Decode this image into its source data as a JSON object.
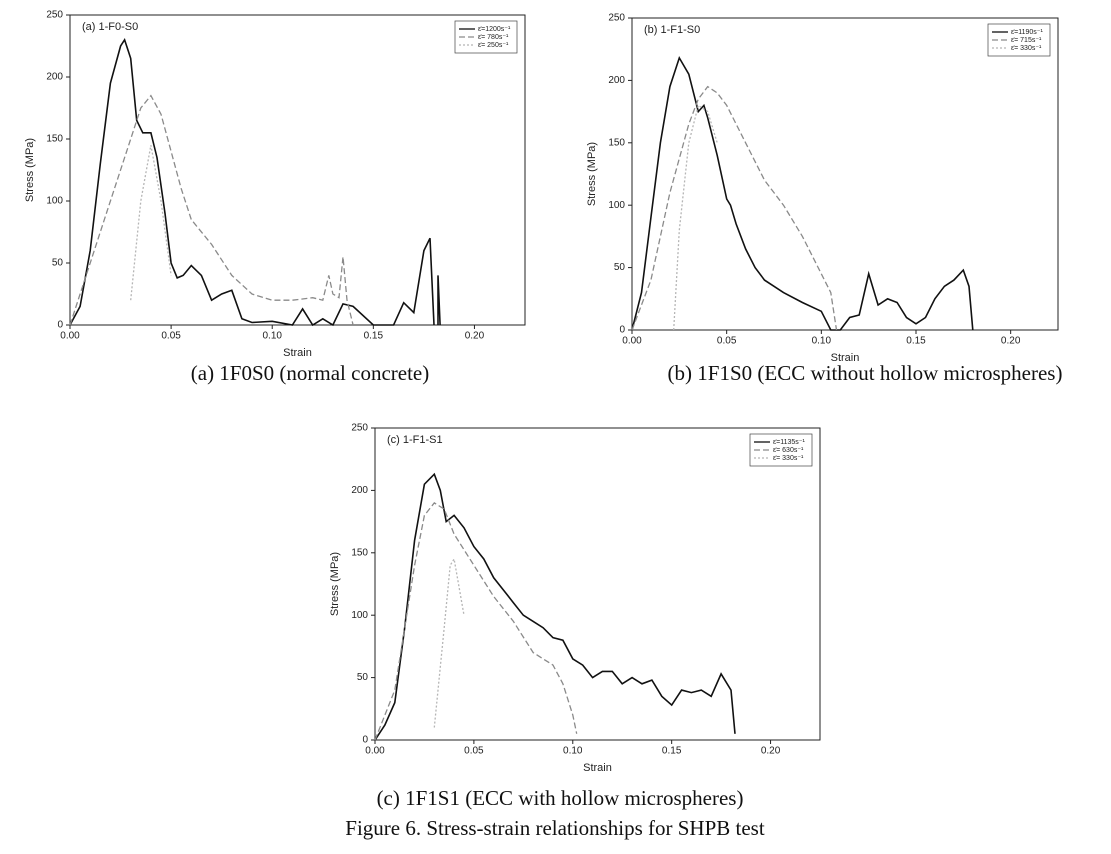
{
  "chart_data": [
    {
      "type": "line",
      "annotation": "(a) 1-F0-S0",
      "caption": "(a) 1F0S0 (normal concrete)",
      "x_label": "Strain",
      "y_label": "Stress (MPa)",
      "xlim": [
        0,
        0.225
      ],
      "ylim": [
        0,
        250
      ],
      "xticks": [
        {
          "value": 0,
          "label": "0.00"
        },
        {
          "value": 0.05,
          "label": "0.05"
        },
        {
          "value": 0.1,
          "label": "0.10"
        },
        {
          "value": 0.15,
          "label": "0.15"
        },
        {
          "value": 0.2,
          "label": "0.20"
        }
      ],
      "yticks": [
        0,
        50,
        100,
        150,
        200,
        250
      ],
      "legend": "upper right",
      "series": [
        {
          "name": "ε̇=1200s⁻¹",
          "color": "#111111",
          "dash": "solid",
          "x": [
            0,
            0.005,
            0.01,
            0.015,
            0.02,
            0.025,
            0.027,
            0.03,
            0.033,
            0.036,
            0.04,
            0.043,
            0.047,
            0.05,
            0.053,
            0.056,
            0.06,
            0.065,
            0.07,
            0.075,
            0.08,
            0.085,
            0.09,
            0.1,
            0.11,
            0.115,
            0.12,
            0.125,
            0.13,
            0.135,
            0.14,
            0.15,
            0.16,
            0.165,
            0.17,
            0.175,
            0.178,
            0.18,
            null,
            0.182,
            0.182,
            0.183
          ],
          "values": [
            0,
            15,
            60,
            130,
            195,
            225,
            230,
            215,
            165,
            155,
            155,
            135,
            90,
            50,
            38,
            40,
            48,
            40,
            20,
            25,
            28,
            5,
            2,
            3,
            0,
            13,
            0,
            5,
            0,
            17,
            15,
            0,
            0,
            18,
            10,
            60,
            70,
            0,
            null,
            0,
            40,
            0
          ]
        },
        {
          "name": "ε̇= 780s⁻¹",
          "color": "#8a8a8a",
          "dash": "dashed",
          "x": [
            0,
            0.01,
            0.02,
            0.03,
            0.035,
            0.04,
            0.045,
            0.05,
            0.055,
            0.06,
            0.07,
            0.08,
            0.09,
            0.1,
            0.11,
            0.12,
            0.125,
            0.128,
            0.13,
            0.133,
            0.135,
            0.137,
            0.14
          ],
          "values": [
            0,
            50,
            100,
            150,
            175,
            185,
            170,
            140,
            110,
            85,
            65,
            40,
            25,
            20,
            20,
            22,
            20,
            40,
            25,
            22,
            55,
            20,
            0
          ]
        },
        {
          "name": "ε̇= 250s⁻¹",
          "color": "#b5b5b5",
          "dash": "dotted",
          "x": [
            0.03,
            0.035,
            0.04,
            0.045,
            0.05
          ],
          "values": [
            20,
            100,
            145,
            100,
            40
          ]
        }
      ]
    },
    {
      "type": "line",
      "annotation": "(b) 1-F1-S0",
      "caption": "(b) 1F1S0 (ECC without hollow microspheres)",
      "x_label": "Strain",
      "y_label": "Stress (MPa)",
      "xlim": [
        0,
        0.225
      ],
      "ylim": [
        0,
        250
      ],
      "xticks": [
        {
          "value": 0,
          "label": "0.00"
        },
        {
          "value": 0.05,
          "label": "0.05"
        },
        {
          "value": 0.1,
          "label": "0.10"
        },
        {
          "value": 0.15,
          "label": "0.15"
        },
        {
          "value": 0.2,
          "label": "0.20"
        }
      ],
      "yticks": [
        0,
        50,
        100,
        150,
        200,
        250
      ],
      "legend": "upper right",
      "series": [
        {
          "name": "ε̇=1190s⁻¹",
          "color": "#111111",
          "dash": "solid",
          "x": [
            0,
            0.005,
            0.01,
            0.015,
            0.02,
            0.025,
            0.03,
            0.035,
            0.038,
            0.04,
            0.045,
            0.05,
            0.052,
            0.055,
            0.06,
            0.065,
            0.07,
            0.075,
            0.08,
            0.09,
            0.1,
            0.105,
            0.11,
            0.115,
            0.12,
            0.125,
            0.13,
            0.135,
            0.14,
            0.145,
            0.15,
            0.155,
            0.16,
            0.165,
            0.17,
            0.175,
            0.178,
            0.18
          ],
          "values": [
            0,
            30,
            90,
            150,
            195,
            218,
            205,
            175,
            180,
            170,
            140,
            105,
            100,
            85,
            65,
            50,
            40,
            35,
            30,
            22,
            15,
            0,
            0,
            10,
            12,
            45,
            20,
            25,
            22,
            10,
            5,
            10,
            25,
            35,
            40,
            48,
            35,
            0
          ]
        },
        {
          "name": "ε̇= 715s⁻¹",
          "color": "#8a8a8a",
          "dash": "dashed",
          "x": [
            0,
            0.01,
            0.02,
            0.03,
            0.035,
            0.04,
            0.045,
            0.05,
            0.06,
            0.07,
            0.08,
            0.09,
            0.1,
            0.105,
            0.108
          ],
          "values": [
            0,
            40,
            110,
            165,
            185,
            195,
            190,
            180,
            150,
            120,
            100,
            75,
            45,
            30,
            0
          ]
        },
        {
          "name": "ε̇= 330s⁻¹",
          "color": "#b5b5b5",
          "dash": "dotted",
          "x": [
            0.022,
            0.025,
            0.03,
            0.035,
            0.04,
            0.045
          ],
          "values": [
            0,
            80,
            150,
            180,
            175,
            150
          ]
        }
      ]
    },
    {
      "type": "line",
      "annotation": "(c) 1-F1-S1",
      "caption": "(c) 1F1S1 (ECC with hollow microspheres)",
      "x_label": "Strain",
      "y_label": "Stress (MPa)",
      "xlim": [
        0,
        0.225
      ],
      "ylim": [
        0,
        250
      ],
      "xticks": [
        {
          "value": 0,
          "label": "0.00"
        },
        {
          "value": 0.05,
          "label": "0.05"
        },
        {
          "value": 0.1,
          "label": "0.10"
        },
        {
          "value": 0.15,
          "label": "0.15"
        },
        {
          "value": 0.2,
          "label": "0.20"
        }
      ],
      "yticks": [
        0,
        50,
        100,
        150,
        200,
        250
      ],
      "legend": "upper right",
      "series": [
        {
          "name": "ε̇=1135s⁻¹",
          "color": "#111111",
          "dash": "solid",
          "x": [
            0,
            0.005,
            0.01,
            0.015,
            0.02,
            0.025,
            0.03,
            0.033,
            0.036,
            0.04,
            0.045,
            0.05,
            0.055,
            0.06,
            0.065,
            0.07,
            0.075,
            0.08,
            0.085,
            0.09,
            0.095,
            0.1,
            0.105,
            0.11,
            0.115,
            0.12,
            0.125,
            0.13,
            0.135,
            0.14,
            0.145,
            0.15,
            0.155,
            0.16,
            0.165,
            0.17,
            0.175,
            0.18,
            0.182
          ],
          "values": [
            0,
            12,
            30,
            90,
            160,
            205,
            213,
            200,
            175,
            180,
            170,
            155,
            145,
            130,
            120,
            110,
            100,
            95,
            90,
            82,
            80,
            65,
            60,
            50,
            55,
            55,
            45,
            50,
            45,
            48,
            35,
            28,
            40,
            38,
            40,
            35,
            53,
            40,
            5
          ]
        },
        {
          "name": "ε̇= 630s⁻¹",
          "color": "#8a8a8a",
          "dash": "dashed",
          "x": [
            0,
            0.01,
            0.02,
            0.025,
            0.03,
            0.035,
            0.04,
            0.05,
            0.06,
            0.07,
            0.08,
            0.09,
            0.095,
            0.1,
            0.102
          ],
          "values": [
            0,
            40,
            140,
            180,
            190,
            185,
            165,
            140,
            115,
            95,
            70,
            60,
            45,
            20,
            5
          ]
        },
        {
          "name": "ε̇= 330s⁻¹",
          "color": "#b5b5b5",
          "dash": "dotted",
          "x": [
            0.03,
            0.035,
            0.038,
            0.04,
            0.045
          ],
          "values": [
            10,
            90,
            140,
            145,
            100
          ]
        }
      ]
    }
  ],
  "figure_caption": "Figure 6. Stress-strain relationships for SHPB test"
}
